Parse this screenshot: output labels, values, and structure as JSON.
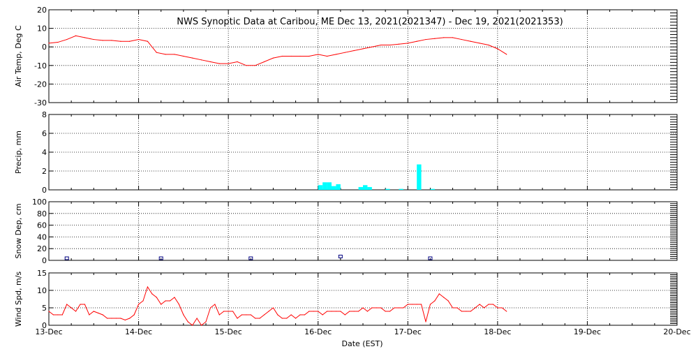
{
  "chart_data": {
    "type": "multi-panel",
    "title": "NWS Synoptic Data at Caribou, ME    Dec 13, 2021(2021347) - Dec 19, 2021(2021353)",
    "xlabel": "Date (EST)",
    "x_ticks": [
      "13-Dec",
      "14-Dec",
      "15-Dec",
      "16-Dec",
      "17-Dec",
      "18-Dec",
      "19-Dec",
      "20-Dec"
    ],
    "x_units": "days since 13-Dec 00:00",
    "grid": true,
    "colors": {
      "line": "#ff0000",
      "bar": "#00ffff",
      "marker": "#000080"
    },
    "panels": [
      {
        "name": "air_temp",
        "type": "line",
        "ylabel": "Air Temp, Deg C",
        "ylim": [
          -30,
          20
        ],
        "yticks": [
          "20",
          "10",
          "0",
          "-10",
          "-20",
          "-30"
        ],
        "ytick_values": [
          20,
          10,
          0,
          -10,
          -20,
          -30
        ],
        "x": [
          0,
          0.1,
          0.2,
          0.3,
          0.4,
          0.5,
          0.6,
          0.7,
          0.8,
          0.9,
          1.0,
          1.1,
          1.2,
          1.3,
          1.4,
          1.5,
          1.6,
          1.7,
          1.8,
          1.9,
          2.0,
          2.1,
          2.2,
          2.3,
          2.4,
          2.5,
          2.6,
          2.7,
          2.8,
          2.9,
          3.0,
          3.1,
          3.2,
          3.3,
          3.4,
          3.5,
          3.6,
          3.7,
          3.8,
          3.9,
          4.0,
          4.1,
          4.2,
          4.3,
          4.4,
          4.5,
          4.6,
          4.7,
          4.8,
          4.9,
          5.0,
          5.1
        ],
        "y": [
          2,
          2.5,
          4,
          6,
          5,
          4,
          3.5,
          3.5,
          3,
          3,
          4,
          3,
          -3,
          -4,
          -4,
          -5,
          -6,
          -7,
          -8,
          -9,
          -9,
          -8,
          -10,
          -10,
          -8,
          -6,
          -5,
          -5,
          -5,
          -5,
          -4,
          -5,
          -4,
          -3,
          -2,
          -1,
          0,
          1,
          1,
          1.5,
          2,
          3,
          4,
          4.5,
          5,
          5,
          4,
          3,
          2,
          1,
          -1,
          -4
        ]
      },
      {
        "name": "precip",
        "type": "bar",
        "ylabel": "Precip, mm",
        "ylim": [
          0,
          8
        ],
        "yticks": [
          "8",
          "6",
          "4",
          "2",
          "0"
        ],
        "ytick_values": [
          8,
          6,
          4,
          2,
          0
        ],
        "x": [
          3.0,
          3.05,
          3.1,
          3.15,
          3.2,
          3.45,
          3.5,
          3.55,
          3.75,
          3.9,
          4.1,
          4.25
        ],
        "values": [
          0.5,
          0.8,
          0.8,
          0.4,
          0.6,
          0.3,
          0.5,
          0.3,
          0.1,
          0.1,
          2.7,
          0.1
        ]
      },
      {
        "name": "snow_depth",
        "type": "scatter",
        "ylabel": "Snow Dep, cm",
        "ylim": [
          0,
          100
        ],
        "yticks": [
          "100",
          "80",
          "60",
          "40",
          "20",
          "0"
        ],
        "ytick_values": [
          100,
          80,
          60,
          40,
          20,
          0
        ],
        "x": [
          0.2,
          1.25,
          2.25,
          3.25,
          4.25
        ],
        "y": [
          0,
          0,
          0,
          3,
          0
        ]
      },
      {
        "name": "wind_speed",
        "type": "line",
        "ylabel": "Wind Spd, m/s",
        "ylim": [
          0,
          15
        ],
        "yticks": [
          "15",
          "10",
          "5",
          "0"
        ],
        "ytick_values": [
          15,
          10,
          5,
          0
        ],
        "x": [
          0,
          0.05,
          0.1,
          0.15,
          0.2,
          0.25,
          0.3,
          0.35,
          0.4,
          0.45,
          0.5,
          0.55,
          0.6,
          0.65,
          0.7,
          0.75,
          0.8,
          0.85,
          0.9,
          0.95,
          1.0,
          1.05,
          1.1,
          1.15,
          1.2,
          1.25,
          1.3,
          1.35,
          1.4,
          1.45,
          1.5,
          1.55,
          1.6,
          1.65,
          1.7,
          1.75,
          1.8,
          1.85,
          1.9,
          1.95,
          2.0,
          2.05,
          2.1,
          2.15,
          2.2,
          2.25,
          2.3,
          2.35,
          2.4,
          2.45,
          2.5,
          2.55,
          2.6,
          2.65,
          2.7,
          2.75,
          2.8,
          2.85,
          2.9,
          2.95,
          3.0,
          3.05,
          3.1,
          3.15,
          3.2,
          3.25,
          3.3,
          3.35,
          3.4,
          3.45,
          3.5,
          3.55,
          3.6,
          3.65,
          3.7,
          3.75,
          3.8,
          3.85,
          3.9,
          3.95,
          4.0,
          4.05,
          4.1,
          4.15,
          4.2,
          4.25,
          4.3,
          4.35,
          4.4,
          4.45,
          4.5,
          4.55,
          4.6,
          4.65,
          4.7,
          4.75,
          4.8,
          4.85,
          4.9,
          4.95,
          5.0,
          5.05,
          5.1
        ],
        "y": [
          4,
          3,
          3,
          3,
          6,
          5,
          4,
          6,
          6,
          3,
          4,
          3.5,
          3,
          2,
          2,
          2,
          2,
          1.5,
          2,
          3,
          6,
          7,
          11,
          9,
          8,
          6,
          7,
          7,
          8,
          6,
          3,
          1,
          0,
          2,
          0,
          1,
          5,
          6,
          3,
          4,
          4,
          4,
          2,
          3,
          3,
          3,
          2,
          2,
          3,
          4,
          5,
          3,
          2,
          2,
          3,
          2,
          3,
          3,
          4,
          4,
          4,
          3,
          4,
          4,
          4,
          4,
          3,
          4,
          4,
          4,
          5,
          4,
          5,
          5,
          5,
          4,
          4,
          5,
          5,
          5,
          6,
          6,
          6,
          6,
          1,
          6,
          7,
          9,
          8,
          7,
          5,
          5,
          4,
          4,
          4,
          5,
          6,
          5,
          6,
          6,
          5,
          5,
          4
        ]
      }
    ]
  }
}
